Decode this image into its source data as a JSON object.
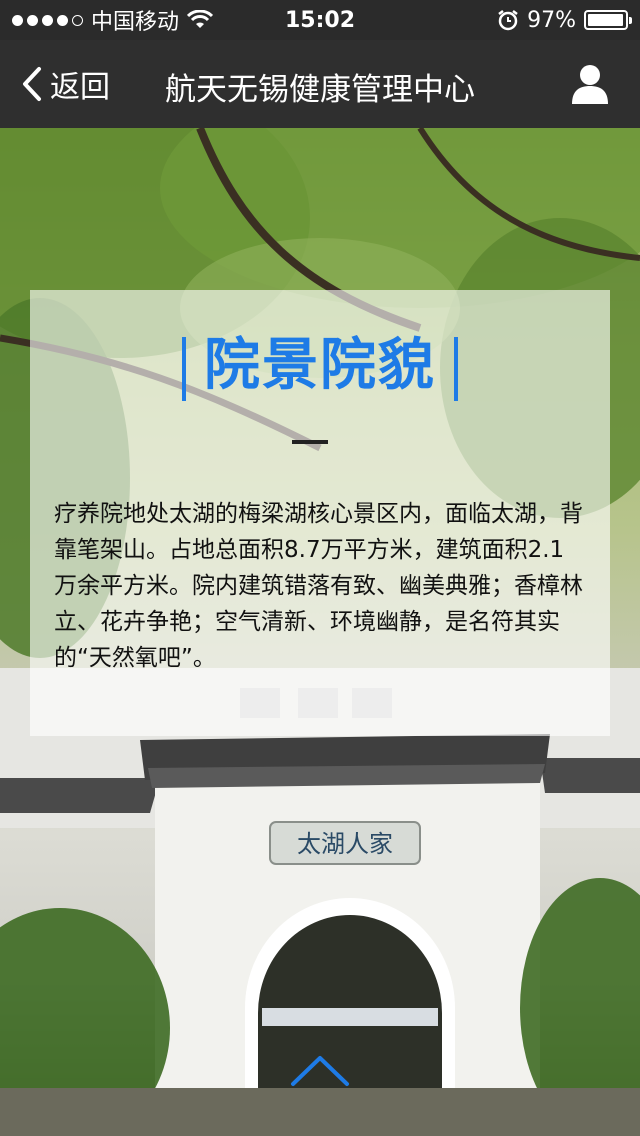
{
  "status_bar": {
    "carrier": "中国移动",
    "time": "15:02",
    "battery": "97%",
    "battery_level": 0.97
  },
  "nav": {
    "back_label": "返回",
    "title": "航天无锡健康管理中心"
  },
  "card": {
    "title": "院景院貌",
    "description": "疗养院地处太湖的梅梁湖核心景区内，面临太湖，背靠笔架山。占地总面积8.7万平方米，建筑面积2.1万余平方米。院内建筑错落有致、幽美典雅；香樟林立、花卉争艳；空气清新、环境幽静，是名符其实的“天然氧吧”。"
  },
  "scene": {
    "plaque_text": "太湖人家"
  },
  "colors": {
    "accent": "#1e7be6",
    "nav_bg": "#2f2f2f"
  }
}
